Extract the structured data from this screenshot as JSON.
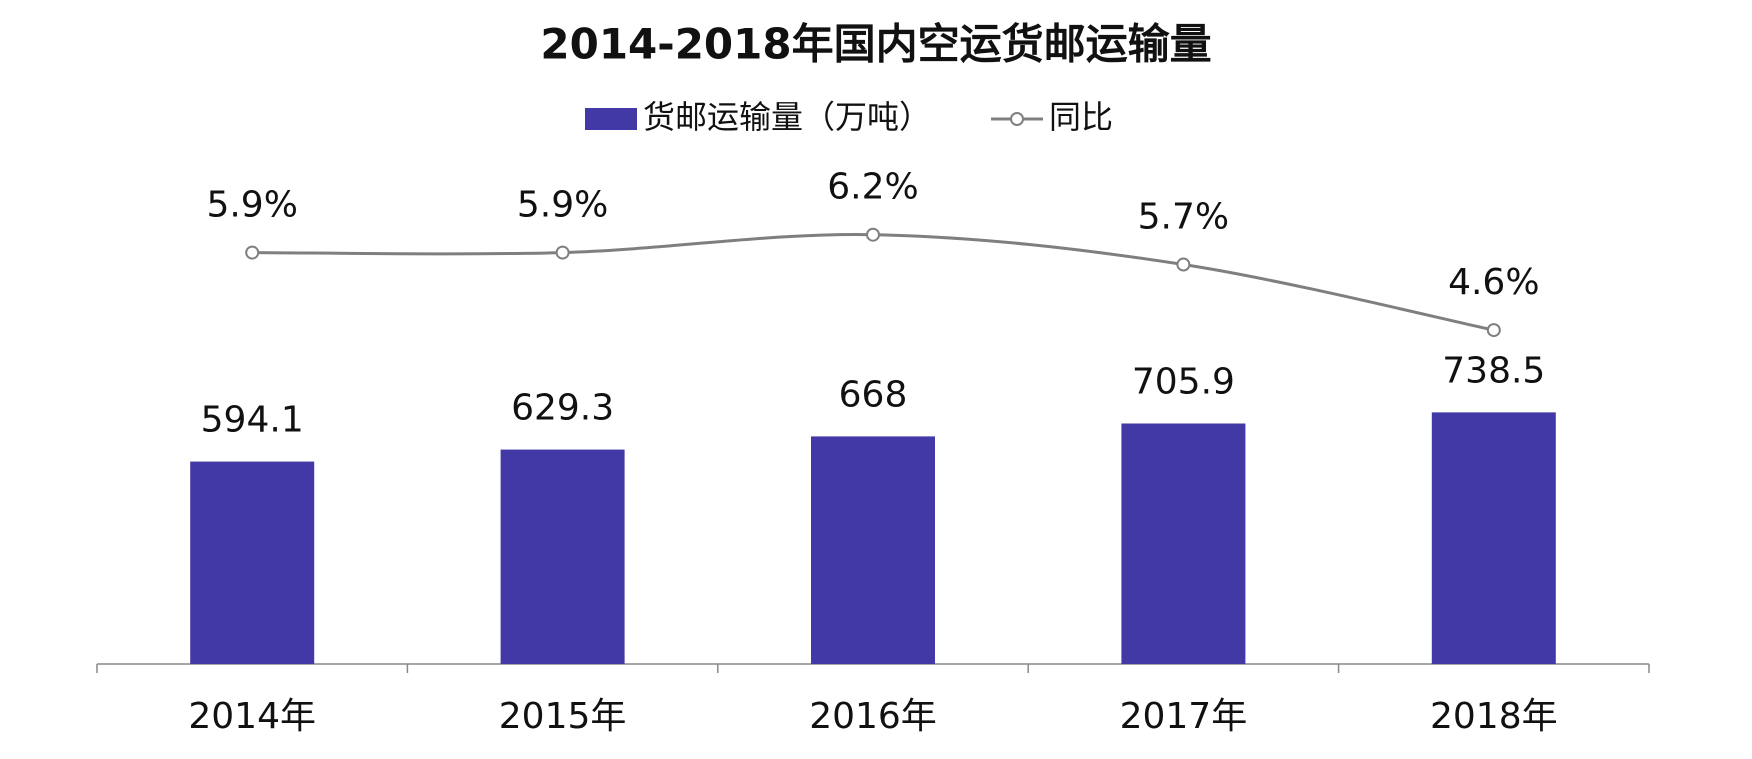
{
  "chart_data": {
    "type": "bar",
    "title": "2014-2018年国内空运货邮运输量",
    "categories": [
      "2014年",
      "2015年",
      "2016年",
      "2017年",
      "2018年"
    ],
    "series": [
      {
        "name": "货邮运输量（万吨）",
        "type": "bar",
        "color": "#4339a6",
        "values": [
          594.1,
          629.3,
          668,
          705.9,
          738.5
        ]
      },
      {
        "name": "同比",
        "type": "line",
        "axis": "y2",
        "color": "#7f7f7f",
        "values": [
          5.9,
          5.9,
          6.2,
          5.7,
          4.6
        ],
        "value_labels": [
          "5.9%",
          "5.9%",
          "6.2%",
          "5.7%",
          "4.6%"
        ]
      }
    ],
    "ylim": [
      0,
      1400
    ],
    "y2lim": [
      -1,
      7
    ],
    "legend": "top"
  }
}
